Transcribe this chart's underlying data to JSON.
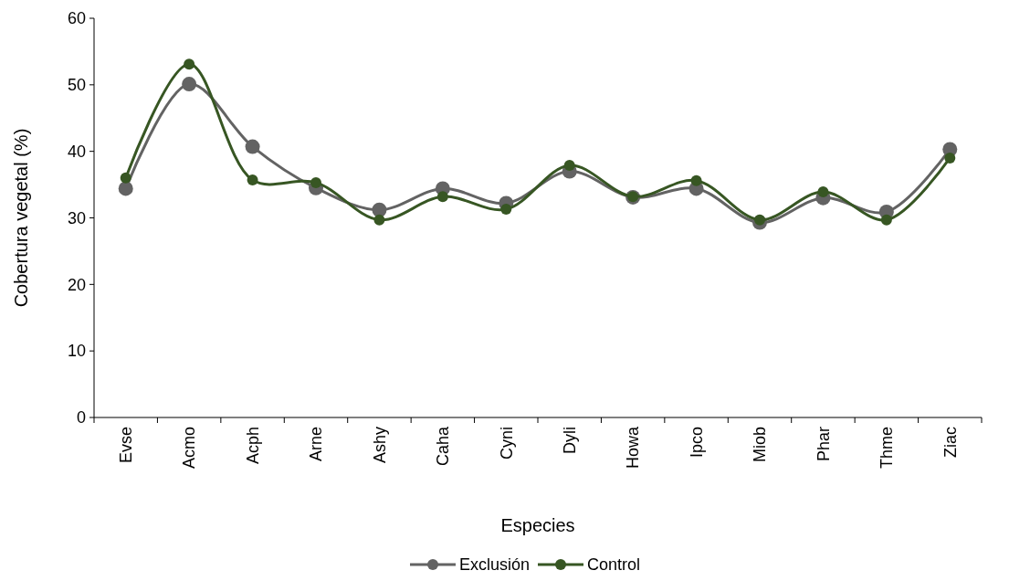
{
  "chart_data": {
    "type": "line",
    "xlabel": "Especies",
    "ylabel": "Cobertura vegetal (%)",
    "categories": [
      "Evse",
      "Acmo",
      "Acph",
      "Arne",
      "Ashy",
      "Caha",
      "Cyni",
      "Dyli",
      "Howa",
      "Ipco",
      "Miob",
      "Phar",
      "Thme",
      "Ziac"
    ],
    "series": [
      {
        "name": "Exclusión",
        "color": "#636363",
        "values": [
          34.4,
          50.1,
          40.7,
          34.5,
          31.2,
          34.4,
          32.2,
          37.0,
          33.1,
          34.4,
          29.3,
          33.0,
          30.9,
          40.3
        ]
      },
      {
        "name": "Control",
        "color": "#375623",
        "values": [
          36.0,
          53.1,
          35.7,
          35.3,
          29.7,
          33.2,
          31.3,
          37.9,
          33.2,
          35.6,
          29.7,
          33.9,
          29.7,
          39.0
        ]
      }
    ],
    "ylim": [
      0,
      60
    ],
    "yticks": [
      0,
      10,
      20,
      30,
      40,
      50,
      60
    ],
    "grid": false,
    "legend": "bottom",
    "marker": "circle",
    "line_style": "solid"
  }
}
